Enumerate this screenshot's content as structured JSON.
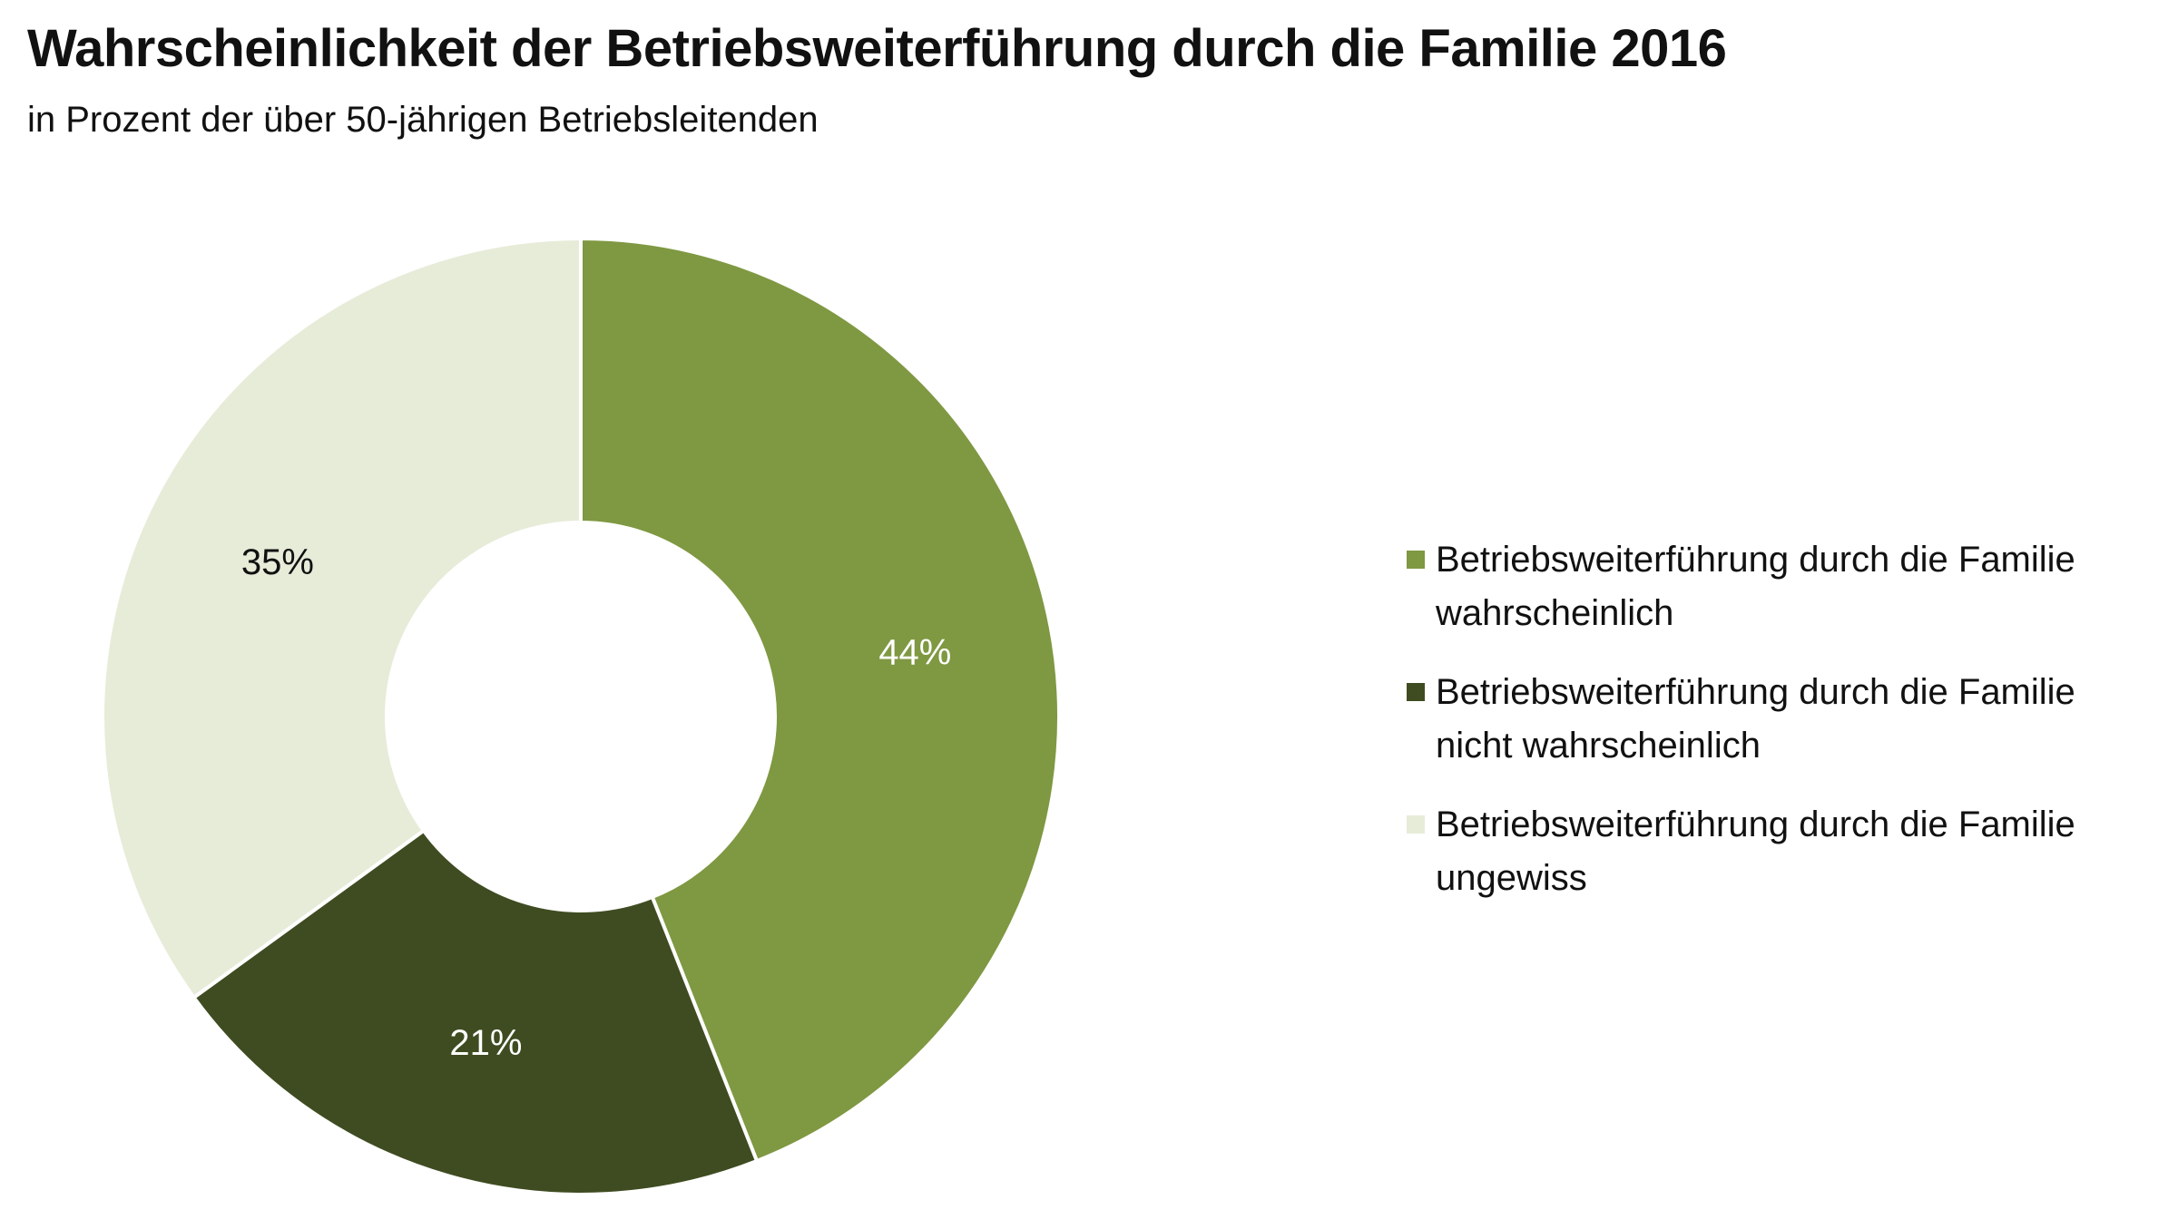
{
  "title": "Wahrscheinlichkeit der Betriebsweiterführung durch die Familie 2016",
  "subtitle": "in Prozent der über 50-jährigen Betriebsleitenden",
  "chart_data": {
    "type": "pie",
    "variant": "donut",
    "title": "Wahrscheinlichkeit der Betriebsweiterführung durch die Familie 2016",
    "subtitle": "in Prozent der über 50-jährigen Betriebsleitenden",
    "unit": "%",
    "legend_position": "right",
    "categories": [
      "Betriebsweiterführung durch die Familie wahrscheinlich",
      "Betriebsweiterführung durch die Familie nicht wahrscheinlich",
      "Betriebsweiterführung durch die Familie ungewiss"
    ],
    "values": [
      44,
      21,
      35
    ],
    "data_labels": [
      "44%",
      "21%",
      "35%"
    ],
    "colors": [
      "#7f9842",
      "#3f4c21",
      "#e7ecd9"
    ],
    "label_colors": [
      "#ffffff",
      "#ffffff",
      "#111111"
    ]
  }
}
